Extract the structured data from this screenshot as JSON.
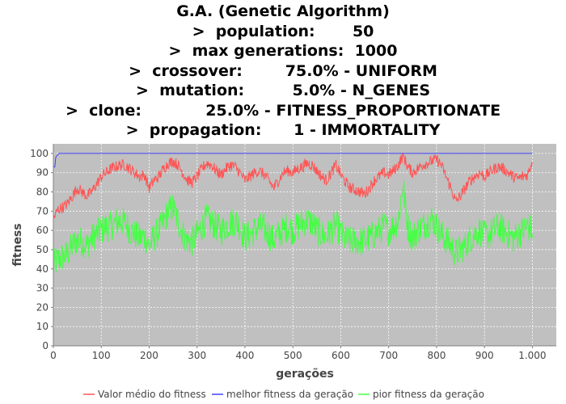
{
  "chart_data": {
    "type": "line",
    "title_lines": [
      "G.A. (Genetic Algorithm)",
      ">  population:       50",
      ">  max generations:  1000",
      ">  crossover:        75.0% - UNIFORM",
      ">  mutation:         5.0% - N_GENES",
      ">  clone:            25.0% - FITNESS_PROPORTIONATE",
      ">  propagation:      1 - IMMORTALITY"
    ],
    "xlabel": "gerações",
    "ylabel": "fitness",
    "xlim": [
      0,
      1050
    ],
    "ylim": [
      0,
      105
    ],
    "xticks": [
      0,
      100,
      200,
      300,
      400,
      500,
      600,
      700,
      800,
      900,
      1000
    ],
    "xtick_labels": [
      "0",
      "100",
      "200",
      "300",
      "400",
      "500",
      "600",
      "700",
      "800",
      "900",
      "1.000"
    ],
    "yticks": [
      0,
      10,
      20,
      30,
      40,
      50,
      60,
      70,
      80,
      90,
      100
    ],
    "ytick_labels": [
      "0",
      "10",
      "20",
      "30",
      "40",
      "50",
      "60",
      "70",
      "80",
      "90",
      "100"
    ],
    "grid": true,
    "legend_position": "bottom",
    "plot_background": "#c0c0c0",
    "series": [
      {
        "name": "Valor médio do fitness",
        "color": "#ff5555",
        "x": [
          0,
          10,
          20,
          30,
          40,
          50,
          60,
          70,
          80,
          90,
          100,
          110,
          120,
          130,
          140,
          150,
          160,
          170,
          180,
          190,
          200,
          210,
          220,
          230,
          240,
          250,
          260,
          270,
          280,
          290,
          300,
          310,
          320,
          330,
          340,
          350,
          360,
          370,
          380,
          390,
          400,
          410,
          420,
          430,
          440,
          450,
          460,
          470,
          480,
          490,
          500,
          510,
          520,
          530,
          540,
          550,
          560,
          570,
          580,
          590,
          600,
          610,
          620,
          630,
          640,
          650,
          660,
          670,
          680,
          690,
          700,
          710,
          720,
          730,
          740,
          750,
          760,
          770,
          780,
          790,
          800,
          810,
          820,
          830,
          840,
          850,
          860,
          870,
          880,
          890,
          900,
          910,
          920,
          930,
          940,
          950,
          960,
          970,
          980,
          990,
          1000
        ],
        "values": [
          66,
          71,
          72,
          74,
          78,
          82,
          80,
          78,
          80,
          84,
          88,
          90,
          92,
          93,
          94,
          94,
          92,
          90,
          88,
          89,
          82,
          86,
          88,
          92,
          95,
          96,
          94,
          90,
          86,
          85,
          88,
          92,
          95,
          94,
          91,
          89,
          92,
          94,
          93,
          90,
          86,
          88,
          90,
          91,
          89,
          86,
          82,
          86,
          90,
          91,
          90,
          92,
          93,
          95,
          94,
          91,
          88,
          86,
          90,
          94,
          89,
          85,
          82,
          81,
          80,
          79,
          82,
          86,
          88,
          90,
          89,
          91,
          94,
          99,
          93,
          90,
          92,
          94,
          95,
          96,
          97,
          94,
          88,
          82,
          75,
          78,
          82,
          86,
          88,
          90,
          88,
          90,
          92,
          93,
          92,
          90,
          88,
          87,
          88,
          89,
          96
        ],
        "noise": 3
      },
      {
        "name": "melhor fitness da geração",
        "color": "#4040ff",
        "x": [
          0,
          3,
          5,
          8,
          12,
          1000
        ],
        "values": [
          93,
          93,
          98,
          99,
          100,
          100
        ],
        "noise": 0
      },
      {
        "name": "pior fitness da geração",
        "color": "#44ff44",
        "x": [
          0,
          10,
          20,
          30,
          40,
          50,
          60,
          70,
          80,
          90,
          100,
          110,
          120,
          130,
          140,
          150,
          160,
          170,
          180,
          190,
          200,
          210,
          220,
          230,
          240,
          250,
          260,
          270,
          280,
          290,
          300,
          310,
          320,
          330,
          340,
          350,
          360,
          370,
          380,
          390,
          400,
          410,
          420,
          430,
          440,
          450,
          460,
          470,
          480,
          490,
          500,
          510,
          520,
          530,
          540,
          550,
          560,
          570,
          580,
          590,
          600,
          610,
          620,
          630,
          640,
          650,
          660,
          670,
          680,
          690,
          700,
          710,
          720,
          730,
          740,
          750,
          760,
          770,
          780,
          790,
          800,
          810,
          820,
          830,
          840,
          850,
          860,
          870,
          880,
          890,
          900,
          910,
          920,
          930,
          940,
          950,
          960,
          970,
          980,
          990,
          1000
        ],
        "values": [
          42,
          45,
          46,
          48,
          52,
          55,
          54,
          52,
          56,
          58,
          60,
          62,
          62,
          64,
          65,
          64,
          60,
          58,
          56,
          57,
          52,
          56,
          60,
          64,
          70,
          72,
          65,
          58,
          55,
          54,
          58,
          62,
          66,
          64,
          62,
          60,
          62,
          64,
          65,
          62,
          56,
          58,
          60,
          62,
          61,
          58,
          55,
          58,
          60,
          62,
          60,
          62,
          64,
          65,
          64,
          60,
          58,
          57,
          60,
          63,
          58,
          55,
          54,
          55,
          54,
          55,
          56,
          58,
          60,
          62,
          60,
          62,
          65,
          84,
          62,
          56,
          60,
          62,
          64,
          66,
          62,
          58,
          55,
          52,
          48,
          50,
          52,
          56,
          58,
          60,
          57,
          58,
          60,
          62,
          60,
          58,
          56,
          58,
          60,
          62,
          60
        ],
        "noise": 8
      }
    ]
  }
}
